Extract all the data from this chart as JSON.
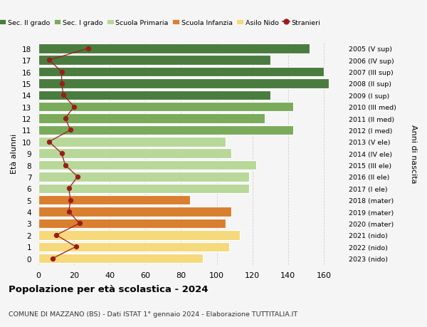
{
  "ages": [
    18,
    17,
    16,
    15,
    14,
    13,
    12,
    11,
    10,
    9,
    8,
    7,
    6,
    5,
    4,
    3,
    2,
    1,
    0
  ],
  "right_labels": [
    "2005 (V sup)",
    "2006 (IV sup)",
    "2007 (III sup)",
    "2008 (II sup)",
    "2009 (I sup)",
    "2010 (III med)",
    "2011 (II med)",
    "2012 (I med)",
    "2013 (V ele)",
    "2014 (IV ele)",
    "2015 (III ele)",
    "2016 (II ele)",
    "2017 (I ele)",
    "2018 (mater)",
    "2019 (mater)",
    "2020 (mater)",
    "2021 (nido)",
    "2022 (nido)",
    "2023 (nido)"
  ],
  "bar_values": [
    152,
    130,
    160,
    163,
    130,
    143,
    127,
    143,
    105,
    108,
    122,
    118,
    118,
    85,
    108,
    105,
    113,
    107,
    92
  ],
  "bar_colors": [
    "#4a7c3f",
    "#4a7c3f",
    "#4a7c3f",
    "#4a7c3f",
    "#4a7c3f",
    "#7aab5a",
    "#7aab5a",
    "#7aab5a",
    "#b8d89a",
    "#b8d89a",
    "#b8d89a",
    "#b8d89a",
    "#b8d89a",
    "#d97f2f",
    "#d97f2f",
    "#d97f2f",
    "#f5d97a",
    "#f5d97a",
    "#f5d97a"
  ],
  "stranieri_values": [
    28,
    6,
    13,
    13,
    14,
    20,
    15,
    18,
    6,
    13,
    15,
    22,
    17,
    18,
    17,
    23,
    10,
    21,
    8
  ],
  "title_main": "Popolazione per età scolastica - 2024",
  "title_sub": "COMUNE DI MAZZANO (BS) - Dati ISTAT 1° gennaio 2024 - Elaborazione TUTTITALIA.IT",
  "ylabel_left": "Età alunni",
  "ylabel_right": "Anni di nascita",
  "xlim": [
    0,
    170
  ],
  "xticks": [
    0,
    20,
    40,
    60,
    80,
    100,
    120,
    140,
    160
  ],
  "legend_items": [
    {
      "label": "Sec. II grado",
      "color": "#4a7c3f"
    },
    {
      "label": "Sec. I grado",
      "color": "#7aab5a"
    },
    {
      "label": "Scuola Primaria",
      "color": "#b8d89a"
    },
    {
      "label": "Scuola Infanzia",
      "color": "#d97f2f"
    },
    {
      "label": "Asilo Nido",
      "color": "#f5d97a"
    },
    {
      "label": "Stranieri",
      "color": "#9b1c1c"
    }
  ],
  "bg_color": "#f5f5f5",
  "grid_color": "#d0d0d0",
  "stranieri_line_color": "#9b1c1c"
}
